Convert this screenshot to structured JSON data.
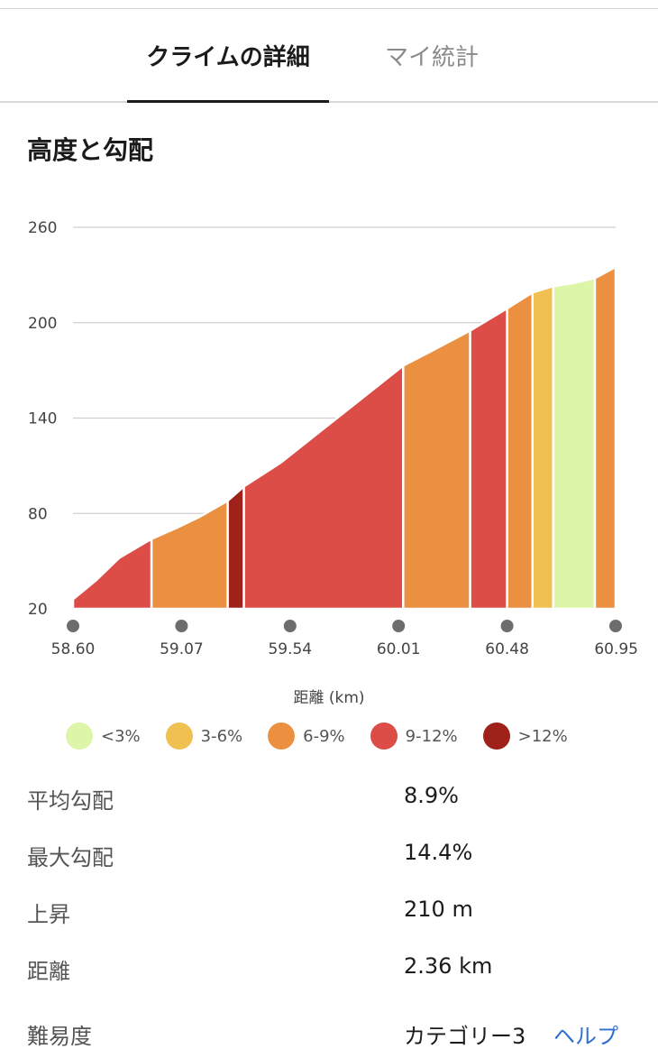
{
  "tabs": [
    {
      "label": "クライムの詳細",
      "active": true
    },
    {
      "label": "マイ統計",
      "active": false
    }
  ],
  "section_title": "高度と勾配",
  "chart_data": {
    "type": "area",
    "title": "",
    "xlabel": "距離 (km)",
    "ylabel": "",
    "xlim": [
      58.6,
      60.95
    ],
    "ylim": [
      20,
      260
    ],
    "x_ticks": [
      "58.60",
      "59.07",
      "59.54",
      "60.01",
      "60.48",
      "60.95"
    ],
    "y_ticks": [
      "260",
      "200",
      "140",
      "80",
      "20"
    ],
    "grid": true,
    "legend_position": "bottom",
    "legend": [
      {
        "label": "<3%",
        "color": "#ddf5a6"
      },
      {
        "label": "3-6%",
        "color": "#f0c152"
      },
      {
        "label": "6-9%",
        "color": "#eb9040"
      },
      {
        "label": "9-12%",
        "color": "#dd4d47"
      },
      {
        "label": ">12%",
        "color": "#9e2219"
      }
    ],
    "segments": [
      {
        "start": 58.6,
        "end": 58.94,
        "grade": "9-12%",
        "profile": [
          [
            58.6,
            26
          ],
          [
            58.7,
            38
          ],
          [
            58.8,
            52
          ],
          [
            58.94,
            64
          ]
        ]
      },
      {
        "start": 58.94,
        "end": 59.27,
        "grade": "6-9%",
        "profile": [
          [
            58.94,
            64
          ],
          [
            59.05,
            71
          ],
          [
            59.15,
            78
          ],
          [
            59.27,
            88
          ]
        ]
      },
      {
        "start": 59.27,
        "end": 59.34,
        "grade": ">12%",
        "profile": [
          [
            59.27,
            88
          ],
          [
            59.34,
            97
          ]
        ]
      },
      {
        "start": 59.34,
        "end": 60.03,
        "grade": "9-12%",
        "profile": [
          [
            59.34,
            97
          ],
          [
            59.5,
            112
          ],
          [
            59.7,
            135
          ],
          [
            59.9,
            158
          ],
          [
            60.03,
            173
          ]
        ]
      },
      {
        "start": 60.03,
        "end": 60.32,
        "grade": "6-9%",
        "profile": [
          [
            60.03,
            173
          ],
          [
            60.15,
            182
          ],
          [
            60.32,
            195
          ]
        ]
      },
      {
        "start": 60.32,
        "end": 60.48,
        "grade": "9-12%",
        "profile": [
          [
            60.32,
            195
          ],
          [
            60.4,
            202
          ],
          [
            60.48,
            209
          ]
        ]
      },
      {
        "start": 60.48,
        "end": 60.59,
        "grade": "6-9%",
        "profile": [
          [
            60.48,
            209
          ],
          [
            60.59,
            219
          ]
        ]
      },
      {
        "start": 60.59,
        "end": 60.68,
        "grade": "3-6%",
        "profile": [
          [
            60.59,
            219
          ],
          [
            60.68,
            223
          ]
        ]
      },
      {
        "start": 60.68,
        "end": 60.86,
        "grade": "<3%",
        "profile": [
          [
            60.68,
            223
          ],
          [
            60.77,
            225
          ],
          [
            60.86,
            228
          ]
        ]
      },
      {
        "start": 60.86,
        "end": 60.95,
        "grade": "6-9%",
        "profile": [
          [
            60.86,
            228
          ],
          [
            60.95,
            235
          ]
        ]
      }
    ]
  },
  "stats": [
    {
      "label": "平均勾配",
      "value": "8.9%"
    },
    {
      "label": "最大勾配",
      "value": "14.4%"
    },
    {
      "label": "上昇",
      "value": "210 m"
    },
    {
      "label": "距離",
      "value": "2.36 km"
    },
    {
      "label": "難易度",
      "value": "カテゴリー3",
      "link": "ヘルプ"
    }
  ]
}
